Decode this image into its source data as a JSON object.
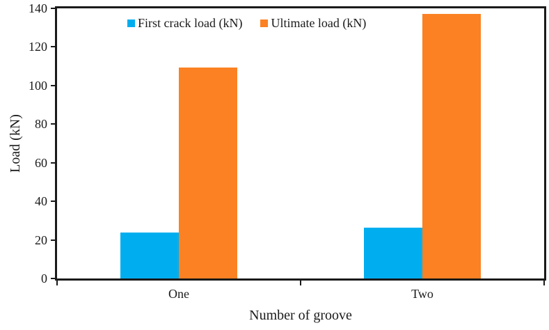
{
  "chart_data": {
    "type": "bar",
    "categories": [
      "One",
      "Two"
    ],
    "series": [
      {
        "name": "First crack load (kN)",
        "color": "#00AEEF",
        "values": [
          24,
          26.5
        ]
      },
      {
        "name": "Ultimate load (kN)",
        "color": "#FB8122",
        "values": [
          109.5,
          137
        ]
      }
    ],
    "title": "",
    "xlabel": "Number of groove",
    "ylabel": "Load (kN)",
    "ylim": [
      0,
      140
    ],
    "yticks": [
      0,
      20,
      40,
      60,
      80,
      100,
      120,
      140
    ],
    "grid": false,
    "legend_position": "top-inside",
    "axis_color": "#1a1a1a",
    "background_color": "#ffffff"
  }
}
